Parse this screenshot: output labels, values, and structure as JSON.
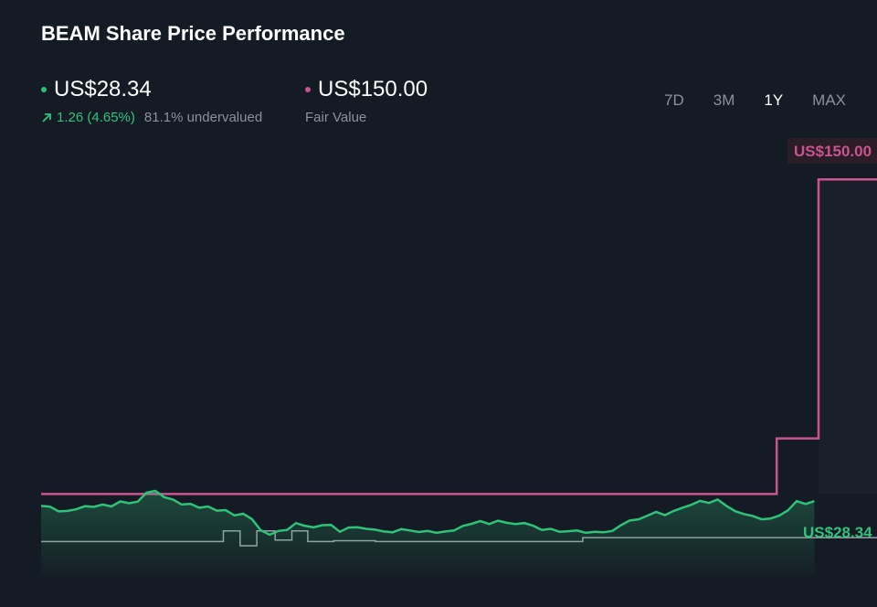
{
  "header": {
    "title": "BEAM Share Price Performance"
  },
  "price": {
    "value": "US$28.34",
    "change": "1.26 (4.65%)",
    "valuation": "81.1% undervalued"
  },
  "fair_value": {
    "value": "US$150.00",
    "label": "Fair Value"
  },
  "ranges": [
    "7D",
    "3M",
    "1Y",
    "MAX"
  ],
  "active_range": "1Y",
  "colors": {
    "background": "#151b24",
    "price": "#2fc27a",
    "fair_value": "#c9548f",
    "analyst": "#9aa0a8"
  },
  "chart_data": {
    "type": "line",
    "title": "BEAM Share Price Performance",
    "ylim": [
      0,
      166
    ],
    "grid": false,
    "series": [
      {
        "name": "Fair Value",
        "type": "step",
        "points": [
          [
            0,
            31
          ],
          [
            0.88,
            31
          ],
          [
            0.88,
            52
          ],
          [
            0.93,
            52
          ],
          [
            0.93,
            150
          ],
          [
            1,
            150
          ]
        ],
        "end_label": "US$150.00"
      },
      {
        "type": "step",
        "points": [
          [
            0,
            13
          ],
          [
            0.218,
            13
          ],
          [
            0.218,
            17
          ],
          [
            0.238,
            17
          ],
          [
            0.238,
            11.4
          ],
          [
            0.258,
            11.4
          ],
          [
            0.258,
            17
          ],
          [
            0.28,
            17
          ],
          [
            0.28,
            13.6
          ],
          [
            0.3,
            13.6
          ],
          [
            0.3,
            17
          ],
          [
            0.319,
            17
          ],
          [
            0.319,
            13
          ],
          [
            0.35,
            13
          ],
          [
            0.35,
            13.3
          ],
          [
            0.4,
            13.3
          ],
          [
            0.4,
            13
          ],
          [
            0.648,
            13
          ],
          [
            0.648,
            14.5
          ],
          [
            1,
            14.5
          ]
        ]
      },
      {
        "name": "Price",
        "type": "line",
        "end_label": "US$28.34",
        "values": [
          26.5,
          26.2,
          24.4,
          24.6,
          25.2,
          26.4,
          26.1,
          27.0,
          26.3,
          28.2,
          27.5,
          28.1,
          31.5,
          32.2,
          29.8,
          28.9,
          27.0,
          27.3,
          25.8,
          26.3,
          24.7,
          24.9,
          22.9,
          23.5,
          21.5,
          17.3,
          15.6,
          17.0,
          17.4,
          20.0,
          19.0,
          18.4,
          19.2,
          19.3,
          16.7,
          18.3,
          18.4,
          17.8,
          17.5,
          16.8,
          16.5,
          17.7,
          17.2,
          16.6,
          17.0,
          16.3,
          16.8,
          17.2,
          18.9,
          19.7,
          20.8,
          19.6,
          20.9,
          20.1,
          19.6,
          20.0,
          19.0,
          17.4,
          17.8,
          16.7,
          16.9,
          17.2,
          16.3,
          16.7,
          16.5,
          17.0,
          19.2,
          21.0,
          21.4,
          22.8,
          24.2,
          23.0,
          24.6,
          25.8,
          26.9,
          28.4,
          27.6,
          28.9,
          26.5,
          24.5,
          23.4,
          22.7,
          21.4,
          21.7,
          22.8,
          24.8,
          28.3,
          27.2,
          28.3
        ]
      }
    ]
  }
}
